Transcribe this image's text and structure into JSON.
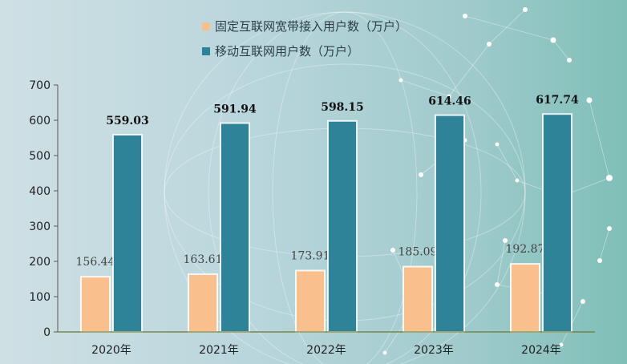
{
  "chart_data": {
    "type": "bar",
    "categories": [
      "2020年",
      "2021年",
      "2022年",
      "2023年",
      "2024年"
    ],
    "series": [
      {
        "name": "固定互联网宽带接入用户数（万户）",
        "values": [
          156.44,
          163.61,
          173.91,
          185.09,
          192.87
        ],
        "color": "#f9c08e"
      },
      {
        "name": "移动互联网用户数（万户）",
        "values": [
          559.03,
          591.94,
          598.15,
          614.46,
          617.74
        ],
        "color": "#2e8399"
      }
    ],
    "value_labels": [
      [
        "156.44",
        "163.61",
        "173.91",
        "185.09",
        "192.87"
      ],
      [
        "559.03",
        "591.94",
        "598.15",
        "614.46",
        "617.74"
      ]
    ],
    "y_ticks": [
      "0",
      "100",
      "200",
      "300",
      "400",
      "500",
      "600",
      "700"
    ],
    "ylim": [
      0,
      700
    ],
    "legend_position": "top-center",
    "grid": false
  }
}
